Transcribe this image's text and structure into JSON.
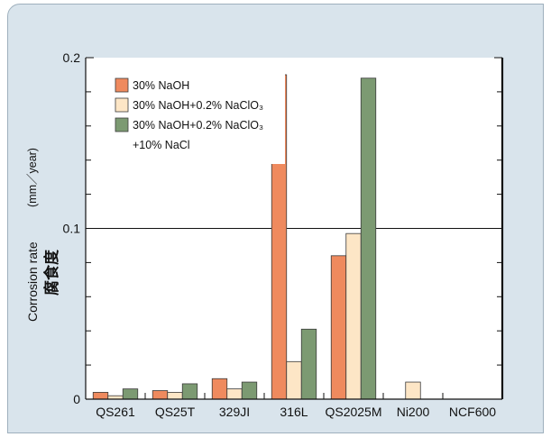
{
  "chart_data": {
    "type": "bar",
    "categories": [
      "QS261",
      "QS25T",
      "329JI",
      "316L",
      "QS2025M",
      "Ni200",
      "NCF600"
    ],
    "series": [
      {
        "name": "30% NaOH",
        "color": "#ef8a5e",
        "values": [
          0.004,
          0.005,
          0.012,
          0.19,
          0.084,
          null,
          null
        ]
      },
      {
        "name": "30% NaOH+0.2% NaClO₃",
        "color": "#fde6c6",
        "values": [
          0.002,
          0.004,
          0.006,
          0.022,
          0.097,
          0.01,
          null
        ]
      },
      {
        "name": "30% NaOH+0.2% NaClO₃ +10% NaCl",
        "name_lines": [
          "30% NaOH+0.2% NaClO₃",
          "+10% NaCl"
        ],
        "color": "#7c9a72",
        "values": [
          0.006,
          0.009,
          0.01,
          0.041,
          0.188,
          null,
          null
        ]
      }
    ],
    "yticks": [
      0,
      0.1,
      0.2
    ],
    "ytick_labels": [
      "0",
      "0.1",
      "0.2"
    ],
    "ylim": [
      0,
      0.2
    ],
    "ylabel": "Corrosion rate",
    "ylabel_unit": "(mm／year)",
    "ylabel_jp": "腐食度",
    "grid": "horizontal line at 0.1",
    "legend_position": "top-left"
  },
  "style": {
    "background": "#ffffff",
    "panel": "#d9e4ec",
    "bar_stroke": "#3a3a3a",
    "axis": "#111111"
  }
}
